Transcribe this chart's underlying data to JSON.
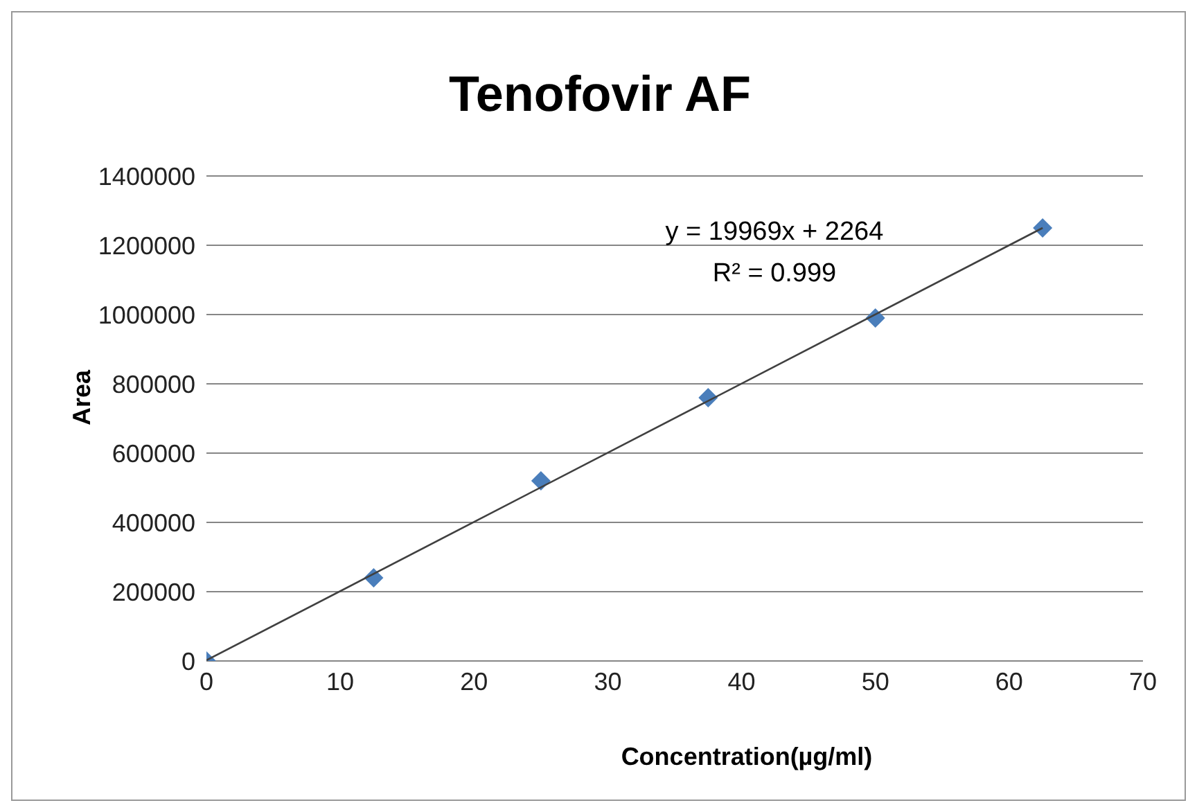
{
  "chart_data": {
    "type": "scatter",
    "title": "Tenofovir AF",
    "xlabel": "Concentration(µg/ml)",
    "ylabel": "Area",
    "xlim": [
      0,
      70
    ],
    "xticks": [
      0,
      10,
      20,
      30,
      40,
      50,
      60,
      70
    ],
    "ylim": [
      0,
      1400000
    ],
    "yticks": [
      0,
      200000,
      400000,
      600000,
      800000,
      1000000,
      1200000,
      1400000
    ],
    "grid": "y",
    "marker": "diamond",
    "series": [
      {
        "color": "#4a7ebb",
        "x": [
          0,
          12.5,
          25,
          37.5,
          50,
          62.5
        ],
        "values": [
          0,
          240000,
          520000,
          760000,
          990000,
          1250000
        ]
      },
      {
        "type": "line",
        "marker": "none",
        "color": "#404040",
        "x": [
          0,
          62.5
        ],
        "values": [
          2000,
          1250000
        ]
      }
    ],
    "annotations": [
      "y = 19969x + 2264",
      "R² = 0.999"
    ]
  }
}
